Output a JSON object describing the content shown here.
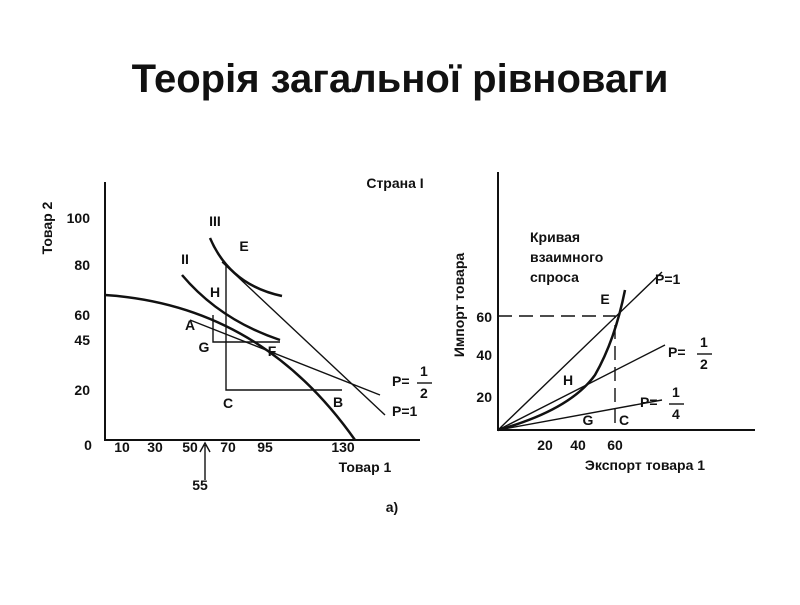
{
  "title": "Теорія загальної рівноваги",
  "left": {
    "country": "Страна I",
    "y_label": "Товар 2",
    "x_label": "Товар 1",
    "panel": "а)",
    "y_ticks": [
      "100",
      "80",
      "60",
      "45",
      "20"
    ],
    "origin": "0",
    "x_ticks": [
      "10",
      "30",
      "50",
      "70",
      "95",
      "130"
    ],
    "marker": "55",
    "points": {
      "III": "III",
      "E": "E",
      "II": "II",
      "H": "H",
      "A": "A",
      "G": "G",
      "F": "F",
      "C": "C",
      "B": "B"
    },
    "price_half": {
      "prefix": "P=",
      "num": "1",
      "den": "2"
    },
    "price_one": "P=1"
  },
  "right": {
    "y_label": "Импорт  товара",
    "x_label": "Экспорт   товара  1",
    "curve_label": [
      "Кривая",
      "взаимного",
      "спроса"
    ],
    "y_ticks": [
      "60",
      "40",
      "20"
    ],
    "x_ticks": [
      "20",
      "40",
      "60"
    ],
    "points": {
      "E": "E",
      "H": "H",
      "G": "G",
      "C": "C"
    },
    "price_one": "P=1",
    "price_half": {
      "prefix": "P=",
      "num": "1",
      "den": "2"
    },
    "price_quarter": {
      "prefix": "P=",
      "num": "1",
      "den": "4"
    }
  }
}
